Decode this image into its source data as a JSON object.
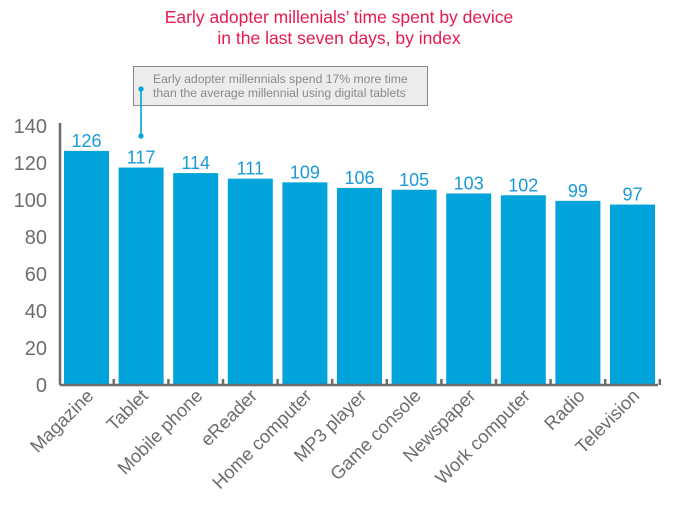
{
  "chart_data": {
    "type": "bar",
    "title": "Early adopter millenials’ time spent by device\nin the last seven days, by index",
    "title_lines": [
      "Early adopter millenials’ time spent by device",
      "in the last seven days, by index"
    ],
    "xlabel": "",
    "ylabel": "",
    "ylim": [
      0,
      140
    ],
    "yticks": [
      0,
      20,
      40,
      60,
      80,
      100,
      120,
      140
    ],
    "grid": false,
    "legend": "none",
    "categories": [
      "Magazine",
      "Tablet",
      "Mobile phone",
      "eReader",
      "Home computer",
      "MP3 player",
      "Game console",
      "Newspaper",
      "Work computer",
      "Radio",
      "Television"
    ],
    "values": [
      126,
      117,
      114,
      111,
      109,
      106,
      105,
      103,
      102,
      99,
      97
    ],
    "data_labels": true,
    "annotation": {
      "target_category": "Tablet",
      "lines": [
        "Early adopter millennials spend 17% more time",
        "than the average millennial using digital tablets"
      ]
    },
    "colors": {
      "bar": "#00a3da",
      "data_label": "#1a9ad6",
      "title": "#e8194f",
      "axis": "#6d6d6d",
      "tick_label": "#6d6d6d",
      "annotation_text": "#8a8a8a"
    }
  }
}
